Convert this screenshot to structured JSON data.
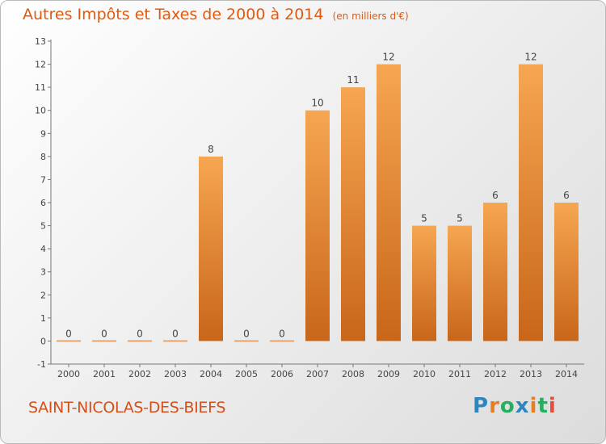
{
  "title": "Autres Impôts et Taxes de 2000 à 2014",
  "unit": "(en milliers d'€)",
  "commune": "SAINT-NICOLAS-DES-BIEFS",
  "logo": {
    "letters": [
      "P",
      "r",
      "o",
      "x",
      "i",
      "t",
      "i"
    ],
    "colors": [
      "#2e86c1",
      "#e67e22",
      "#27ae60",
      "#2e86c1",
      "#e67e22",
      "#27ae60",
      "#e74c3c"
    ]
  },
  "colors": {
    "bar": "#e58a2e",
    "accent": "#e05a0f"
  },
  "chart_data": {
    "type": "bar",
    "categories": [
      "2000",
      "2001",
      "2002",
      "2003",
      "2004",
      "2005",
      "2006",
      "2007",
      "2008",
      "2009",
      "2010",
      "2011",
      "2012",
      "2013",
      "2014"
    ],
    "values": [
      0,
      0,
      0,
      0,
      8,
      0,
      0,
      10,
      11,
      12,
      5,
      5,
      6,
      12,
      6
    ],
    "title": "Autres Impôts et Taxes de 2000 à 2014",
    "xlabel": "",
    "ylabel": "",
    "ylim": [
      -1,
      13
    ],
    "yticks": [
      -1,
      0,
      1,
      2,
      3,
      4,
      5,
      6,
      7,
      8,
      9,
      10,
      11,
      12,
      13
    ],
    "grid": false,
    "legend": "none"
  }
}
